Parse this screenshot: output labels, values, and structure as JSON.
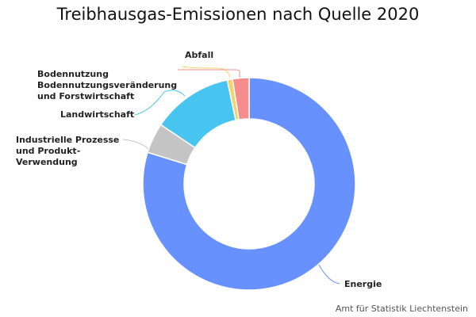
{
  "chart_data": {
    "type": "pie",
    "title": "Treibhausgas-Emissionen nach Quelle 2020",
    "donut": true,
    "slices": [
      {
        "name": "Energie",
        "value": 79.8,
        "color": "#6691ff",
        "label_lines": [
          "Energie"
        ]
      },
      {
        "name": "Industrielle Prozesse und Produkt-Verwendung",
        "value": 4.6,
        "color": "#c4c4c4",
        "label_lines": [
          "Industrielle Prozesse",
          "und Produkt-",
          "Verwendung"
        ]
      },
      {
        "name": "Landwirtschaft",
        "value": 12.3,
        "color": "#48c4f0",
        "label_lines": [
          "Landwirtschaft"
        ]
      },
      {
        "name": "Bodennutzung Bodennutzungsveränderung und Forstwirtschaft",
        "value": 0.8,
        "color": "#f5d36b",
        "label_lines": [
          "Bodennutzung",
          "Bodennutzungsveränderung",
          "und Forstwirtschaft"
        ]
      },
      {
        "name": "Abfall",
        "value": 2.5,
        "color": "#f78c8c",
        "label_lines": [
          "Abfall"
        ]
      }
    ],
    "legend": "none",
    "credit": "Amt für Statistik Liechtenstein"
  }
}
